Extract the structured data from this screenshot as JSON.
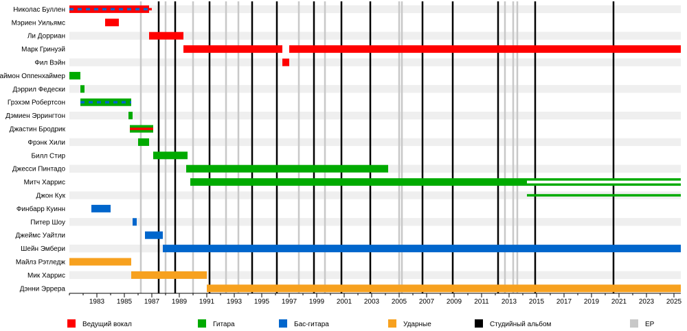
{
  "chart_data": {
    "type": "timeline",
    "x_range": [
      1981.0,
      2025.5
    ],
    "x_ticks": [
      1983,
      1985,
      1987,
      1989,
      1991,
      1993,
      1995,
      1997,
      1999,
      2001,
      2003,
      2005,
      2007,
      2009,
      2011,
      2013,
      2015,
      2017,
      2019,
      2021,
      2023,
      2025
    ],
    "grid": true,
    "colors": {
      "vocals": "#ff0000",
      "guitar": "#00aa00",
      "bass": "#0066cc",
      "drums": "#f7a11f",
      "album": "#000000",
      "ep": "#c8c8c8"
    },
    "legend": [
      {
        "key": "vocals",
        "label": "Ведущий вокал"
      },
      {
        "key": "guitar",
        "label": "Гитара"
      },
      {
        "key": "bass",
        "label": "Бас-гитара"
      },
      {
        "key": "drums",
        "label": "Ударные"
      },
      {
        "key": "album",
        "label": "Студийный альбом"
      },
      {
        "key": "ep",
        "label": "EP"
      }
    ],
    "studio_albums": [
      1987.5,
      1988.7,
      1991.2,
      1994.3,
      1996.1,
      1998.8,
      2000.8,
      2002.9,
      2006.7,
      2008.9,
      2012.2,
      2014.9,
      2020.6
    ],
    "eps": [
      1986.2,
      1988.0,
      1990.0,
      1992.4,
      1993.3,
      1997.7,
      1999.6,
      2005.0,
      2005.2,
      2012.7,
      2013.3,
      2013.6
    ],
    "members": [
      {
        "name": "Николас Буллен",
        "bars": [
          {
            "role": "vocals",
            "start": 1981.0,
            "end": 1986.8
          },
          {
            "role": "bass",
            "start": 1981.0,
            "end": 1986.8,
            "thin": true
          }
        ]
      },
      {
        "name": "Мэриен Уильямс",
        "bars": [
          {
            "role": "vocals",
            "start": 1983.6,
            "end": 1984.6
          }
        ]
      },
      {
        "name": "Ли Дорриан",
        "bars": [
          {
            "role": "vocals",
            "start": 1986.8,
            "end": 1989.3
          }
        ]
      },
      {
        "name": "Марк Гринуэй",
        "bars": [
          {
            "role": "vocals",
            "start": 1989.3,
            "end": 1996.5
          },
          {
            "role": "vocals",
            "start": 1997.0,
            "end": 2025.5
          }
        ]
      },
      {
        "name": "Фил Вэйн",
        "bars": [
          {
            "role": "vocals",
            "start": 1996.5,
            "end": 1997.0
          }
        ]
      },
      {
        "name": "Саймон Оппенхаймер",
        "bars": [
          {
            "role": "guitar",
            "start": 1981.0,
            "end": 1981.8
          }
        ]
      },
      {
        "name": "Дэррил Федески",
        "bars": [
          {
            "role": "guitar",
            "start": 1981.8,
            "end": 1982.1
          }
        ]
      },
      {
        "name": "Грэхэм Робертсон",
        "bars": [
          {
            "role": "guitar",
            "start": 1981.8,
            "end": 1985.5
          },
          {
            "role": "bass",
            "start": 1981.8,
            "end": 1985.5,
            "thin": true
          }
        ]
      },
      {
        "name": "Дэмиен Эррингтон",
        "bars": [
          {
            "role": "guitar",
            "start": 1985.3,
            "end": 1985.6
          }
        ]
      },
      {
        "name": "Джастин Бродрик",
        "bars": [
          {
            "role": "guitar",
            "start": 1985.4,
            "end": 1987.1
          },
          {
            "role": "vocals",
            "start": 1985.4,
            "end": 1987.1,
            "thin": true
          }
        ]
      },
      {
        "name": "Фрэнк Хили",
        "bars": [
          {
            "role": "guitar",
            "start": 1986.0,
            "end": 1986.8
          }
        ]
      },
      {
        "name": "Билл Стир",
        "bars": [
          {
            "role": "guitar",
            "start": 1987.1,
            "end": 1989.6
          }
        ]
      },
      {
        "name": "Джесси Пинтадо",
        "bars": [
          {
            "role": "guitar",
            "start": 1989.5,
            "end": 2004.2
          }
        ]
      },
      {
        "name": "Митч Харрис",
        "bars": [
          {
            "role": "guitar",
            "start": 1989.8,
            "end": 2014.3
          },
          {
            "role": "guitar",
            "start": 2014.3,
            "end": 2025.5,
            "hollow": true
          }
        ]
      },
      {
        "name": "Джон Кук",
        "bars": [
          {
            "role": "guitar",
            "start": 2014.3,
            "end": 2025.5,
            "thin": true
          }
        ]
      },
      {
        "name": "Финбарр Куинн",
        "bars": [
          {
            "role": "bass",
            "start": 1982.6,
            "end": 1984.0
          }
        ]
      },
      {
        "name": "Питер Шоу",
        "bars": [
          {
            "role": "bass",
            "start": 1985.6,
            "end": 1985.9
          }
        ]
      },
      {
        "name": "Джеймс Уайтли",
        "bars": [
          {
            "role": "bass",
            "start": 1986.5,
            "end": 1987.8
          }
        ]
      },
      {
        "name": "Шейн Эмбери",
        "bars": [
          {
            "role": "bass",
            "start": 1987.8,
            "end": 2025.5
          }
        ]
      },
      {
        "name": "Майлз Рэтледж",
        "bars": [
          {
            "role": "drums",
            "start": 1981.0,
            "end": 1985.5
          }
        ]
      },
      {
        "name": "Мик Харрис",
        "bars": [
          {
            "role": "drums",
            "start": 1985.5,
            "end": 1991.0
          }
        ]
      },
      {
        "name": "Дэнни Эррера",
        "bars": [
          {
            "role": "drums",
            "start": 1991.0,
            "end": 2025.5
          }
        ]
      }
    ]
  }
}
